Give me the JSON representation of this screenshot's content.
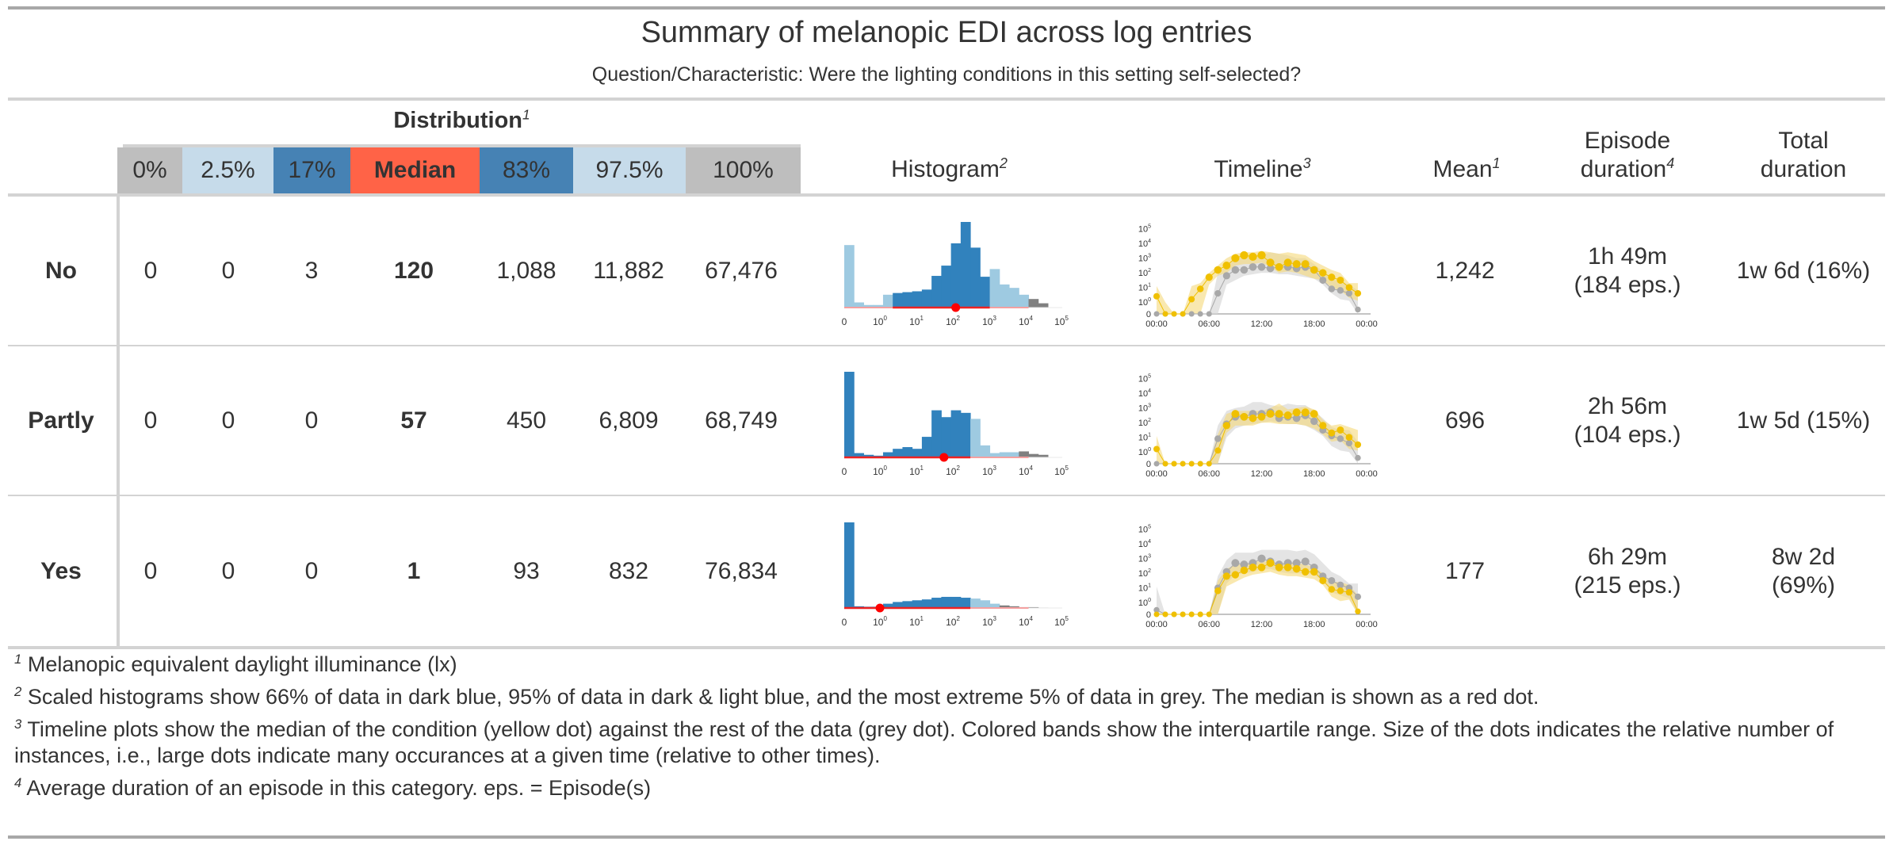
{
  "title": "Summary of melanopic EDI across log entries",
  "subtitle": "Question/Characteristic: Were the lighting conditions in this setting self-selected?",
  "spanner": {
    "label": "Distribution",
    "footnote_mark": "1"
  },
  "columns": {
    "quantiles": [
      {
        "label": "0%",
        "color": "#bebebe",
        "bold": false
      },
      {
        "label": "2.5%",
        "color": "#c6dbea",
        "bold": false
      },
      {
        "label": "17%",
        "color": "#4682b4",
        "bold": false
      },
      {
        "label": "Median",
        "color": "#ff6347",
        "bold": true
      },
      {
        "label": "83%",
        "color": "#4682b4",
        "bold": false
      },
      {
        "label": "97.5%",
        "color": "#c6dbea",
        "bold": false
      },
      {
        "label": "100%",
        "color": "#bebebe",
        "bold": false
      }
    ],
    "histogram": {
      "label": "Histogram",
      "footnote_mark": "2"
    },
    "timeline": {
      "label": "Timeline",
      "footnote_mark": "3"
    },
    "mean": {
      "label": "Mean",
      "footnote_mark": "1"
    },
    "episode": {
      "line1": "Episode",
      "line2": "duration",
      "footnote_mark": "4"
    },
    "total": {
      "line1": "Total",
      "line2": "duration"
    }
  },
  "rows": [
    {
      "label": "No",
      "quantiles": [
        "0",
        "0",
        "3",
        "120",
        "1,088",
        "11,882",
        "67,476"
      ],
      "mean": "1,242",
      "episode_line1": "1h 49m",
      "episode_line2": "(184 eps.)",
      "total_line1": "1w 6d (16%)",
      "total_line2": ""
    },
    {
      "label": "Partly",
      "quantiles": [
        "0",
        "0",
        "0",
        "57",
        "450",
        "6,809",
        "68,749"
      ],
      "mean": "696",
      "episode_line1": "2h 56m",
      "episode_line2": "(104 eps.)",
      "total_line1": "1w 5d (15%)",
      "total_line2": ""
    },
    {
      "label": "Yes",
      "quantiles": [
        "0",
        "0",
        "0",
        "1",
        "93",
        "832",
        "76,834"
      ],
      "mean": "177",
      "episode_line1": "6h 29m",
      "episode_line2": "(215 eps.)",
      "total_line1": "8w 2d",
      "total_line2": "(69%)"
    }
  ],
  "footnotes": [
    {
      "mark": "1",
      "text": "Melanopic equivalent daylight illuminance (lx)"
    },
    {
      "mark": "2",
      "text": "Scaled histograms show 66% of data in dark blue, 95% of data in dark & light blue, and the most extreme 5% of data in grey. The median is shown as a red dot."
    },
    {
      "mark": "3",
      "text": "Timeline plots show the median of the condition (yellow dot) against the rest of the data (grey dot). Colored bands show the interquartile range. Size of the dots indicates the relative number of instances, i.e., large dots indicate many occurances at a given time (relative to other times)."
    },
    {
      "mark": "4",
      "text": "Average duration of an episode in this category. eps. = Episode(s)"
    }
  ],
  "colors": {
    "dark_blue": "#3182bd",
    "light_blue": "#9ecae1",
    "grey_tail": "#808080",
    "median_dot": "#ff0000",
    "condition_yellow": "#f0c000",
    "condition_band": "#f5d97a",
    "rest_grey": "#a8a8a8",
    "rest_band": "#d9d9d9"
  },
  "chart_data": [
    {
      "type": "bar",
      "name": "histogram-no",
      "title": "Histogram (No)",
      "x_scale": "log (pseudo-log with 0)",
      "tick_labels": [
        "0",
        "10^0",
        "10^1",
        "10^2",
        "10^3",
        "10^4",
        "10^5"
      ],
      "bins_relative_height": [
        0.73,
        0.06,
        0.03,
        0.03,
        0.15,
        0.17,
        0.18,
        0.19,
        0.21,
        0.37,
        0.49,
        0.75,
        1.0,
        0.7,
        0.36,
        0.45,
        0.27,
        0.23,
        0.15,
        0.1,
        0.05
      ],
      "bin_class": [
        "light",
        "light",
        "light",
        "light",
        "light",
        "dark",
        "dark",
        "dark",
        "dark",
        "dark",
        "dark",
        "dark",
        "dark",
        "dark",
        "dark",
        "light",
        "light",
        "light",
        "light",
        "grey",
        "grey"
      ],
      "median": 120
    },
    {
      "type": "bar",
      "name": "histogram-partly",
      "title": "Histogram (Partly)",
      "x_scale": "log (pseudo-log with 0)",
      "tick_labels": [
        "0",
        "10^0",
        "10^1",
        "10^2",
        "10^3",
        "10^4",
        "10^5"
      ],
      "bins_relative_height": [
        1.0,
        0.05,
        0.03,
        0.02,
        0.06,
        0.1,
        0.12,
        0.1,
        0.24,
        0.55,
        0.47,
        0.55,
        0.52,
        0.45,
        0.14,
        0.05,
        0.06,
        0.06,
        0.07,
        0.04,
        0.03
      ],
      "bin_class": [
        "dark",
        "dark",
        "dark",
        "dark",
        "dark",
        "dark",
        "dark",
        "dark",
        "dark",
        "dark",
        "dark",
        "dark",
        "dark",
        "light",
        "light",
        "light",
        "light",
        "light",
        "grey",
        "grey",
        "grey"
      ],
      "median": 57
    },
    {
      "type": "bar",
      "name": "histogram-yes",
      "title": "Histogram (Yes)",
      "x_scale": "log (pseudo-log with 0)",
      "tick_labels": [
        "0",
        "10^0",
        "10^1",
        "10^2",
        "10^3",
        "10^4",
        "10^5"
      ],
      "bins_relative_height": [
        1.0,
        0.02,
        0.015,
        0.015,
        0.05,
        0.07,
        0.08,
        0.09,
        0.1,
        0.12,
        0.13,
        0.13,
        0.12,
        0.11,
        0.09,
        0.05,
        0.03,
        0.02,
        0.01,
        0.01,
        0.005
      ],
      "bin_class": [
        "dark",
        "dark",
        "dark",
        "dark",
        "dark",
        "dark",
        "dark",
        "dark",
        "dark",
        "dark",
        "dark",
        "dark",
        "dark",
        "light",
        "light",
        "light",
        "grey",
        "grey",
        "grey",
        "grey",
        "grey"
      ],
      "median": 1
    },
    {
      "type": "line",
      "name": "timeline-no",
      "title": "Timeline (No)",
      "x_tick_labels": [
        "00:00",
        "06:00",
        "12:00",
        "18:00",
        "00:00"
      ],
      "y_tick_labels": [
        "0",
        "10^0",
        "10^1",
        "10^2",
        "10^3",
        "10^4",
        "10^5"
      ],
      "y_scale": "pseudo-log10, ticks at 0..5 decades",
      "hours": [
        0,
        1,
        2,
        3,
        4,
        5,
        6,
        7,
        8,
        9,
        10,
        11,
        12,
        13,
        14,
        15,
        16,
        17,
        18,
        19,
        20,
        21,
        22,
        23
      ],
      "series": [
        {
          "name": "condition (median, yellow)",
          "log10_values": [
            0.4,
            -1,
            -1,
            -1,
            0.2,
            0.9,
            1.7,
            2.2,
            2.5,
            3.0,
            3.2,
            3.1,
            3.2,
            2.7,
            2.4,
            2.7,
            2.6,
            2.6,
            2.2,
            2.0,
            1.7,
            1.5,
            1.0,
            0.6
          ],
          "iqr_low": [
            -1,
            -1,
            -1,
            -1,
            -1,
            -1,
            1.2,
            1.8,
            2.0,
            2.5,
            2.6,
            2.6,
            2.7,
            2.4,
            2.0,
            2.1,
            2.0,
            1.8,
            1.6,
            1.5,
            1.0,
            0.8,
            0.3,
            0.1
          ],
          "iqr_high": [
            1.1,
            0,
            -1,
            -1,
            1.1,
            1.3,
            2.0,
            2.5,
            3.0,
            3.3,
            3.4,
            3.4,
            3.5,
            3.4,
            3.3,
            3.4,
            3.3,
            3.2,
            2.8,
            2.5,
            2.2,
            2.0,
            1.3,
            1.3
          ]
        },
        {
          "name": "rest (median, grey)",
          "log10_values": [
            -1,
            -1,
            -1,
            -1,
            -1,
            -1,
            -1,
            0.6,
            1.8,
            2.2,
            2.2,
            2.4,
            2.4,
            2.3,
            2.4,
            2.4,
            2.3,
            2.4,
            2.2,
            1.5,
            0.9,
            0.8,
            0.6,
            -0.5
          ],
          "iqr_low": [
            -1,
            -1,
            -1,
            -1,
            -1,
            -1,
            -1,
            -1,
            1.2,
            1.5,
            1.8,
            1.9,
            2.0,
            2.0,
            1.9,
            1.9,
            1.8,
            1.7,
            1.6,
            1.2,
            0.6,
            0.2,
            0.1,
            -1
          ],
          "iqr_high": [
            -1,
            -1,
            -1,
            -1,
            -1,
            -1,
            -1,
            2.0,
            2.5,
            3.0,
            3.0,
            3.2,
            3.2,
            3.4,
            3.3,
            3.2,
            3.0,
            3.0,
            2.6,
            2.1,
            1.6,
            1.4,
            1.2,
            0.8
          ]
        }
      ]
    },
    {
      "type": "line",
      "name": "timeline-partly",
      "title": "Timeline (Partly)",
      "x_tick_labels": [
        "00:00",
        "06:00",
        "12:00",
        "18:00",
        "00:00"
      ],
      "y_tick_labels": [
        "0",
        "10^0",
        "10^1",
        "10^2",
        "10^3",
        "10^4",
        "10^5"
      ],
      "y_scale": "pseudo-log10, ticks at 0..5 decades",
      "hours": [
        0,
        1,
        2,
        3,
        4,
        5,
        6,
        7,
        8,
        9,
        10,
        11,
        12,
        13,
        14,
        15,
        16,
        17,
        18,
        19,
        20,
        21,
        22,
        23
      ],
      "series": [
        {
          "name": "condition (median, yellow)",
          "log10_values": [
            0.2,
            -1,
            -1,
            -1,
            -1,
            -1,
            -1,
            0.1,
            1.8,
            2.6,
            2.4,
            2.3,
            2.4,
            2.6,
            2.6,
            2.5,
            2.7,
            2.7,
            2.6,
            1.8,
            1.3,
            1.5,
            1.0,
            0.5
          ],
          "iqr_low": [
            -1,
            -1,
            -1,
            -1,
            -1,
            -1,
            -1,
            -1,
            1.3,
            1.8,
            1.8,
            1.8,
            2.0,
            2.0,
            1.9,
            1.9,
            1.9,
            1.8,
            1.6,
            1.2,
            0.7,
            0.8,
            0.2,
            0.1
          ],
          "iqr_high": [
            1.1,
            -1,
            -1,
            -1,
            -1,
            -1,
            -1,
            1.2,
            2.6,
            2.8,
            2.8,
            2.8,
            2.8,
            3.0,
            3.3,
            2.9,
            3.0,
            3.1,
            2.9,
            2.2,
            1.8,
            1.9,
            1.7,
            1.5
          ]
        },
        {
          "name": "rest (median, grey)",
          "log10_values": [
            -1,
            -1,
            -1,
            -1,
            -1,
            -1,
            -1,
            0.9,
            1.9,
            2.4,
            2.4,
            2.6,
            2.6,
            2.7,
            2.3,
            2.4,
            2.3,
            2.5,
            2.1,
            1.5,
            1.1,
            0.9,
            0.6,
            -0.4
          ],
          "iqr_low": [
            -1,
            -1,
            -1,
            -1,
            -1,
            -1,
            -1,
            -1,
            1.0,
            1.6,
            1.8,
            1.9,
            2.0,
            2.1,
            2.0,
            1.9,
            1.9,
            1.8,
            1.5,
            1.1,
            0.4,
            0.1,
            0.0,
            -1
          ],
          "iqr_high": [
            -1,
            -1,
            -1,
            -1,
            -1,
            -1,
            -1,
            1.8,
            2.8,
            3.0,
            3.1,
            3.4,
            3.4,
            3.2,
            3.1,
            3.3,
            3.2,
            3.2,
            2.8,
            2.3,
            1.7,
            1.5,
            1.5,
            0.7
          ]
        }
      ]
    },
    {
      "type": "line",
      "name": "timeline-yes",
      "title": "Timeline (Yes)",
      "x_tick_labels": [
        "00:00",
        "06:00",
        "12:00",
        "18:00",
        "00:00"
      ],
      "y_tick_labels": [
        "0",
        "10^0",
        "10^1",
        "10^2",
        "10^3",
        "10^4",
        "10^5"
      ],
      "y_scale": "pseudo-log10, ticks at 0..5 decades",
      "hours": [
        0,
        1,
        2,
        3,
        4,
        5,
        6,
        7,
        8,
        9,
        10,
        11,
        12,
        13,
        14,
        15,
        16,
        17,
        18,
        19,
        20,
        21,
        22,
        23
      ],
      "series": [
        {
          "name": "condition (median, yellow)",
          "log10_values": [
            -1,
            -1,
            -1,
            -1,
            -1,
            -1,
            -1,
            0.8,
            1.8,
            1.9,
            2.2,
            2.4,
            2.4,
            2.7,
            2.4,
            2.4,
            2.3,
            2.1,
            2.1,
            1.5,
            0.9,
            0.8,
            0.7,
            -0.6
          ],
          "iqr_low": [
            -1,
            -1,
            -1,
            -1,
            -1,
            -1,
            -1,
            -1,
            1.1,
            1.4,
            1.7,
            1.9,
            2.0,
            2.1,
            1.9,
            1.8,
            1.8,
            1.7,
            1.6,
            1.2,
            0.4,
            0.1,
            0.2,
            -1
          ],
          "iqr_high": [
            -1,
            -1,
            -1,
            -1,
            -1,
            -1,
            -1,
            1.5,
            2.3,
            2.6,
            2.6,
            2.8,
            2.8,
            2.8,
            2.6,
            2.7,
            2.7,
            2.6,
            2.4,
            2.0,
            1.4,
            1.4,
            1.2,
            0.5
          ]
        },
        {
          "name": "rest (median, grey)",
          "log10_values": [
            -0.5,
            -1,
            -1,
            -1,
            -1,
            -1,
            -1,
            1.0,
            2.1,
            2.7,
            2.6,
            2.7,
            3.0,
            2.8,
            2.6,
            2.7,
            2.7,
            2.8,
            2.4,
            1.8,
            1.5,
            1.2,
            1.0,
            0.4
          ],
          "iqr_low": [
            -1,
            -1,
            -1,
            -1,
            -1,
            -1,
            -1,
            -1,
            1.3,
            1.9,
            2.0,
            2.1,
            2.3,
            2.3,
            2.1,
            2.0,
            2.0,
            2.0,
            1.9,
            1.5,
            0.7,
            0.5,
            0.3,
            -1
          ],
          "iqr_high": [
            1.1,
            -1,
            -1,
            -1,
            -1,
            -1,
            -1,
            1.8,
            2.9,
            3.4,
            3.4,
            3.4,
            3.6,
            3.6,
            3.6,
            3.6,
            3.5,
            3.6,
            3.3,
            2.7,
            2.1,
            1.8,
            1.3,
            1.3
          ]
        }
      ]
    }
  ]
}
